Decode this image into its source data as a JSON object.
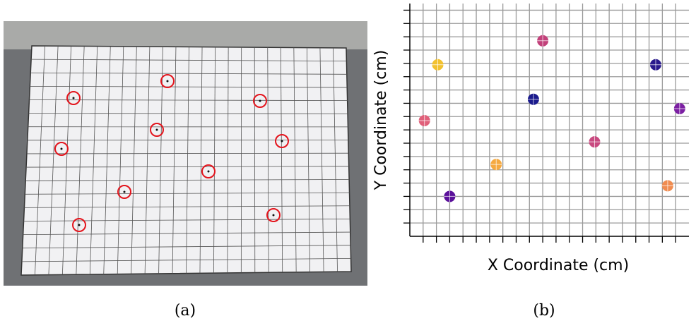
{
  "caption_a": "(a)",
  "caption_b": "(b)",
  "chart_data": {
    "type": "scatter",
    "x_label": "X Coordinate (cm)",
    "y_label": "Y Coordinate (cm)",
    "x": [
      2.1,
      10.0,
      18.5,
      9.3,
      20.3,
      1.1,
      13.9,
      6.5,
      19.4,
      3.0
    ],
    "values": [
      12.9,
      14.7,
      12.9,
      10.3,
      9.6,
      8.7,
      7.1,
      5.4,
      3.8,
      3.0
    ],
    "colors": [
      "#f2c12e",
      "#c2417a",
      "#2a1a8c",
      "#1a1a8c",
      "#7b1fa2",
      "#e0607a",
      "#c84a80",
      "#f5a940",
      "#f08c50",
      "#5a109a"
    ],
    "xlim": [
      0,
      21
    ],
    "ylim": [
      0,
      17.5
    ],
    "xticks": [
      1,
      2,
      3,
      4,
      5,
      6,
      7,
      8,
      9,
      10,
      11,
      12,
      13,
      14,
      15,
      16,
      17,
      18,
      19,
      20
    ],
    "yticks": [
      1,
      2,
      3,
      4,
      5,
      6,
      7,
      8,
      9,
      10,
      11,
      12,
      13,
      14,
      15,
      16,
      17
    ],
    "grid": true
  }
}
